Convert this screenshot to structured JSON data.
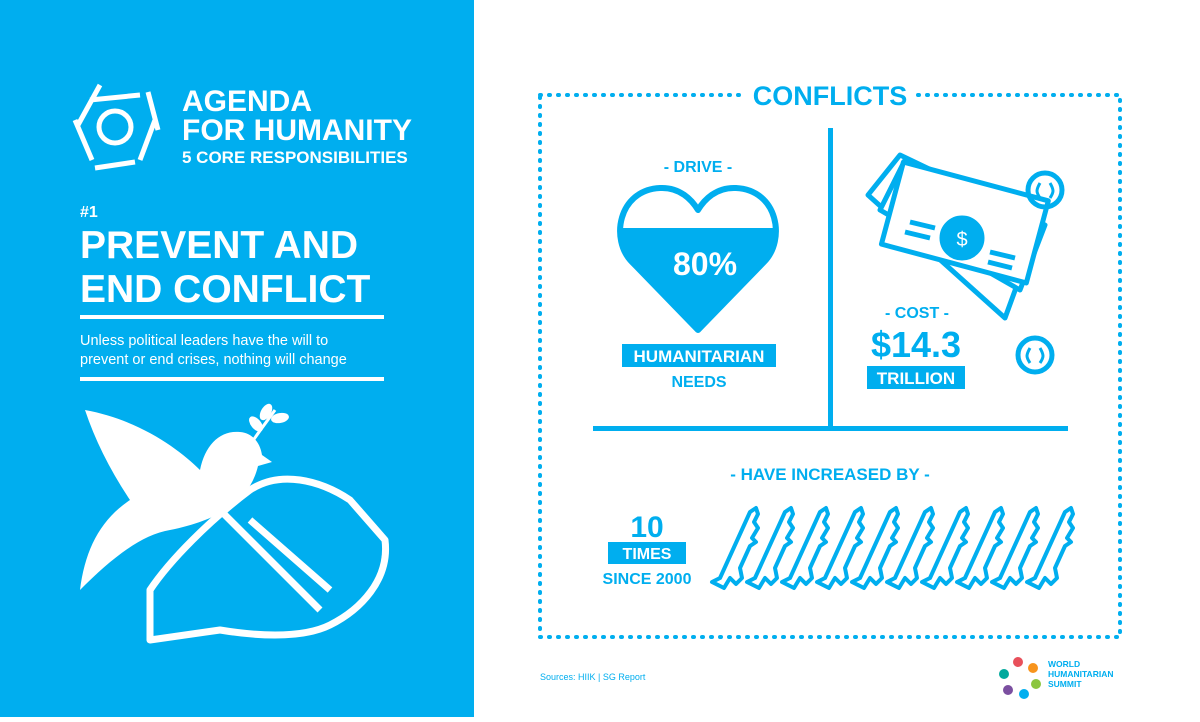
{
  "header": {
    "title_line1": "AGENDA",
    "title_line2": "FOR HUMANITY",
    "subtitle": "5 CORE RESPONSIBILITIES"
  },
  "responsibility": {
    "number": "#1",
    "title_line1": "PREVENT AND",
    "title_line2": "END CONFLICT",
    "text_line1": "Unless political leaders have the will to",
    "text_line2": "prevent or end crises, nothing will change"
  },
  "panel": {
    "title": "CONFLICTS",
    "drive": {
      "label": "- DRIVE -",
      "value": "80%",
      "highlight": "HUMANITARIAN",
      "caption": "NEEDS"
    },
    "cost": {
      "label": "- COST -",
      "value": "$14.3",
      "highlight": "TRILLION"
    },
    "increase": {
      "label": "- HAVE INCREASED BY -",
      "value": "10",
      "highlight": "TIMES",
      "caption": "SINCE 2000"
    }
  },
  "footer": {
    "sources": "Sources: HIIK | SG Report",
    "logo_line1": "WORLD",
    "logo_line2": "HUMANITARIAN",
    "logo_line3": "SUMMIT"
  }
}
